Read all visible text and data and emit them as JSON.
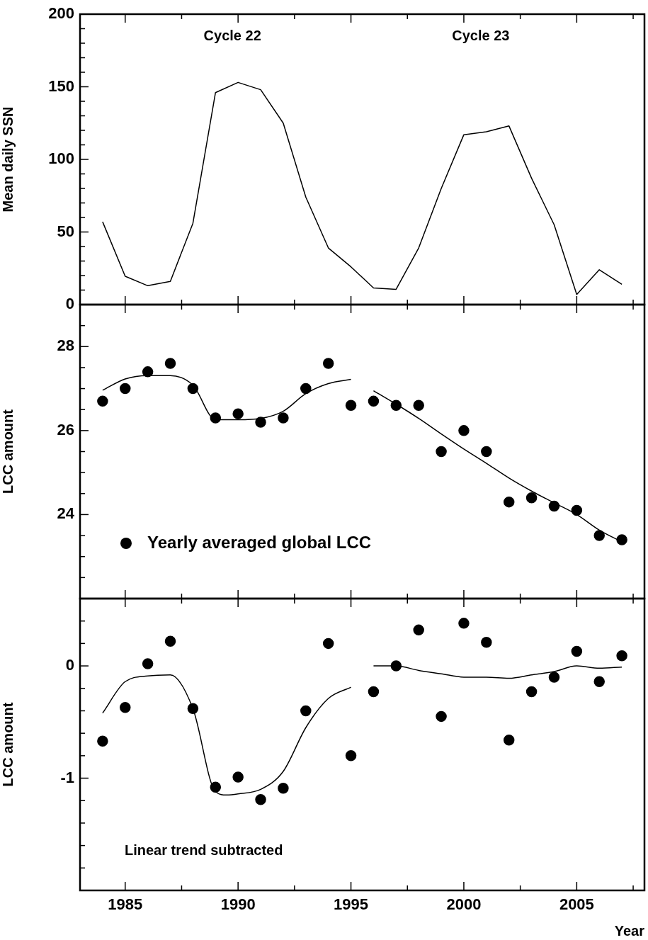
{
  "chart_data": [
    {
      "type": "line",
      "ylabel": "Mean daily SSN",
      "color": "#000000",
      "marker": "none",
      "tick_labels": "y",
      "x": [
        1984,
        1985,
        1986,
        1987,
        1988,
        1989,
        1990,
        1991,
        1992,
        1993,
        1994,
        1995,
        1996,
        1997,
        1998,
        1999,
        2000,
        2001,
        2002,
        2003,
        2004,
        2005,
        2006,
        2007
      ],
      "values": [
        57,
        19.5,
        13,
        16,
        56,
        146,
        153,
        148,
        125,
        74,
        39,
        26,
        11.5,
        10.5,
        39,
        80,
        117,
        119,
        123,
        87,
        55,
        7,
        24,
        14
      ],
      "xlim": [
        1983,
        2008
      ],
      "xticks": [
        1985,
        {
          "value": 1987.5,
          "label": null
        },
        1990,
        {
          "value": 1992.5,
          "label": null
        },
        1995,
        {
          "value": 1997.5,
          "label": null
        },
        2000,
        {
          "value": 2002.5,
          "label": null
        },
        2005,
        {
          "value": 2007.5,
          "label": null
        }
      ],
      "ylim": [
        0,
        200
      ],
      "yticks": [
        0,
        {
          "value": 10,
          "label": null
        },
        {
          "value": 20,
          "label": null
        },
        {
          "value": 30,
          "label": null
        },
        {
          "value": 40,
          "label": null
        },
        50,
        {
          "value": 60,
          "label": null
        },
        {
          "value": 70,
          "label": null
        },
        {
          "value": 80,
          "label": null
        },
        {
          "value": 90,
          "label": null
        },
        100,
        {
          "value": 110,
          "label": null
        },
        {
          "value": 120,
          "label": null
        },
        {
          "value": 130,
          "label": null
        },
        {
          "value": 140,
          "label": null
        },
        150,
        {
          "value": 160,
          "label": null
        },
        {
          "value": 170,
          "label": null
        },
        {
          "value": 180,
          "label": null
        },
        {
          "value": 190,
          "label": null
        },
        200
      ],
      "annotations": [
        "Cycle 22",
        "Cycle 23"
      ]
    },
    {
      "type": "scatter",
      "ylabel": "LCC amount",
      "tick_labels": "y",
      "legend": "bottom left",
      "xlim": [
        1983,
        2008
      ],
      "xticks": [
        1985,
        {
          "value": 1987.5,
          "label": null
        },
        1990,
        {
          "value": 1992.5,
          "label": null
        },
        1995,
        {
          "value": 1997.5,
          "label": null
        },
        2000,
        {
          "value": 2002.5,
          "label": null
        },
        2005,
        {
          "value": 2007.5,
          "label": null
        }
      ],
      "ylim": [
        22,
        29
      ],
      "yticks": [
        {
          "value": 22.5,
          "label": null
        },
        {
          "value": 23,
          "label": null
        },
        {
          "value": 23.5,
          "label": null
        },
        24,
        {
          "value": 24.5,
          "label": null
        },
        {
          "value": 25,
          "label": null
        },
        {
          "value": 25.5,
          "label": null
        },
        26,
        {
          "value": 26.5,
          "label": null
        },
        {
          "value": 27,
          "label": null
        },
        {
          "value": 27.5,
          "label": null
        },
        28,
        {
          "value": 28.5,
          "label": null
        }
      ],
      "series": [
        {
          "name": "Yearly averaged global LCC",
          "type": "scatter",
          "color": "#000000",
          "marker": "circle",
          "x": [
            1984,
            1985,
            1986,
            1987,
            1988,
            1989,
            1990,
            1991,
            1992,
            1993,
            1994,
            1995,
            1996,
            1997,
            1998,
            1999,
            2000,
            2001,
            2002,
            2003,
            2004,
            2005,
            2006,
            2007
          ],
          "values": [
            26.7,
            27.0,
            27.4,
            27.6,
            27.0,
            26.3,
            26.4,
            26.2,
            26.3,
            27.0,
            27.6,
            26.6,
            26.7,
            26.6,
            26.6,
            25.5,
            26.0,
            25.5,
            24.3,
            24.4,
            24.2,
            24.1,
            23.5,
            23.4
          ]
        },
        {
          "type": "line",
          "color": "#000000",
          "marker": "none",
          "x": [
            1984,
            1985,
            1986,
            1987,
            1988,
            1989,
            1990,
            1991,
            1992,
            1993,
            1994,
            1995
          ],
          "values": [
            26.96,
            27.23,
            27.31,
            27.31,
            27.08,
            26.26,
            26.26,
            26.29,
            26.46,
            26.88,
            27.12,
            27.22
          ]
        },
        {
          "type": "line",
          "color": "#000000",
          "marker": "none",
          "x": [
            1996,
            1997,
            1998,
            1999,
            2000,
            2001,
            2002,
            2003,
            2004,
            2005,
            2006,
            2007
          ],
          "values": [
            26.95,
            26.63,
            26.29,
            25.92,
            25.56,
            25.22,
            24.87,
            24.56,
            24.28,
            24.0,
            23.63,
            23.35
          ]
        }
      ]
    },
    {
      "type": "scatter",
      "ylabel": "LCC amount",
      "xlabel": "Year",
      "xlim": [
        1983,
        2008
      ],
      "xticks": [
        1985,
        {
          "value": 1987.5,
          "label": null
        },
        1990,
        {
          "value": 1992.5,
          "label": null
        },
        1995,
        {
          "value": 1997.5,
          "label": null
        },
        2000,
        {
          "value": 2002.5,
          "label": null
        },
        2005,
        {
          "value": 2007.5,
          "label": null
        }
      ],
      "ylim": [
        -2,
        0.6
      ],
      "yticks": [
        {
          "value": -1.8,
          "label": null
        },
        {
          "value": -1.6,
          "label": null
        },
        {
          "value": -1.4,
          "label": null
        },
        {
          "value": -1.2,
          "label": null
        },
        -1,
        {
          "value": -0.8,
          "label": null
        },
        {
          "value": -0.6,
          "label": null
        },
        {
          "value": -0.4,
          "label": null
        },
        {
          "value": -0.2,
          "label": null
        },
        0,
        {
          "value": 0.2,
          "label": null
        },
        {
          "value": 0.4,
          "label": null
        }
      ],
      "series": [
        {
          "type": "scatter",
          "color": "#000000",
          "marker": "circle",
          "x": [
            1984,
            1985,
            1986,
            1987,
            1988,
            1989,
            1990,
            1991,
            1992,
            1993,
            1994,
            1995,
            1996,
            1997,
            1998,
            1999,
            2000,
            2001,
            2002,
            2003,
            2004,
            2005,
            2006,
            2007
          ],
          "values": [
            -0.67,
            -0.37,
            0.02,
            0.22,
            -0.38,
            -1.08,
            -0.99,
            -1.19,
            -1.09,
            -0.4,
            0.2,
            -0.8,
            -0.23,
            0.0,
            0.32,
            -0.45,
            0.38,
            0.21,
            -0.66,
            -0.23,
            -0.1,
            0.13,
            -0.14,
            0.09
          ]
        },
        {
          "type": "line",
          "color": "#000000",
          "marker": "none",
          "x": [
            1984,
            1985,
            1986,
            1987,
            1988,
            1989,
            1989.5,
            1990,
            1991,
            1992,
            1993,
            1994,
            1995
          ],
          "values": [
            -0.42,
            -0.14,
            -0.09,
            -0.08,
            -0.38,
            -1.12,
            -1.15,
            -1.14,
            -1.1,
            -0.94,
            -0.55,
            -0.29,
            -0.19
          ]
        },
        {
          "type": "line",
          "color": "#000000",
          "marker": "none",
          "x": [
            1996,
            1997,
            1998,
            1999,
            2000,
            2001,
            2002,
            2003,
            2004,
            2005,
            2006,
            2007
          ],
          "values": [
            0.0,
            0.0,
            -0.04,
            -0.07,
            -0.1,
            -0.1,
            -0.11,
            -0.08,
            -0.05,
            0.0,
            -0.02,
            -0.01
          ]
        }
      ],
      "annotations": [
        "Linear trend subtracted"
      ]
    }
  ]
}
